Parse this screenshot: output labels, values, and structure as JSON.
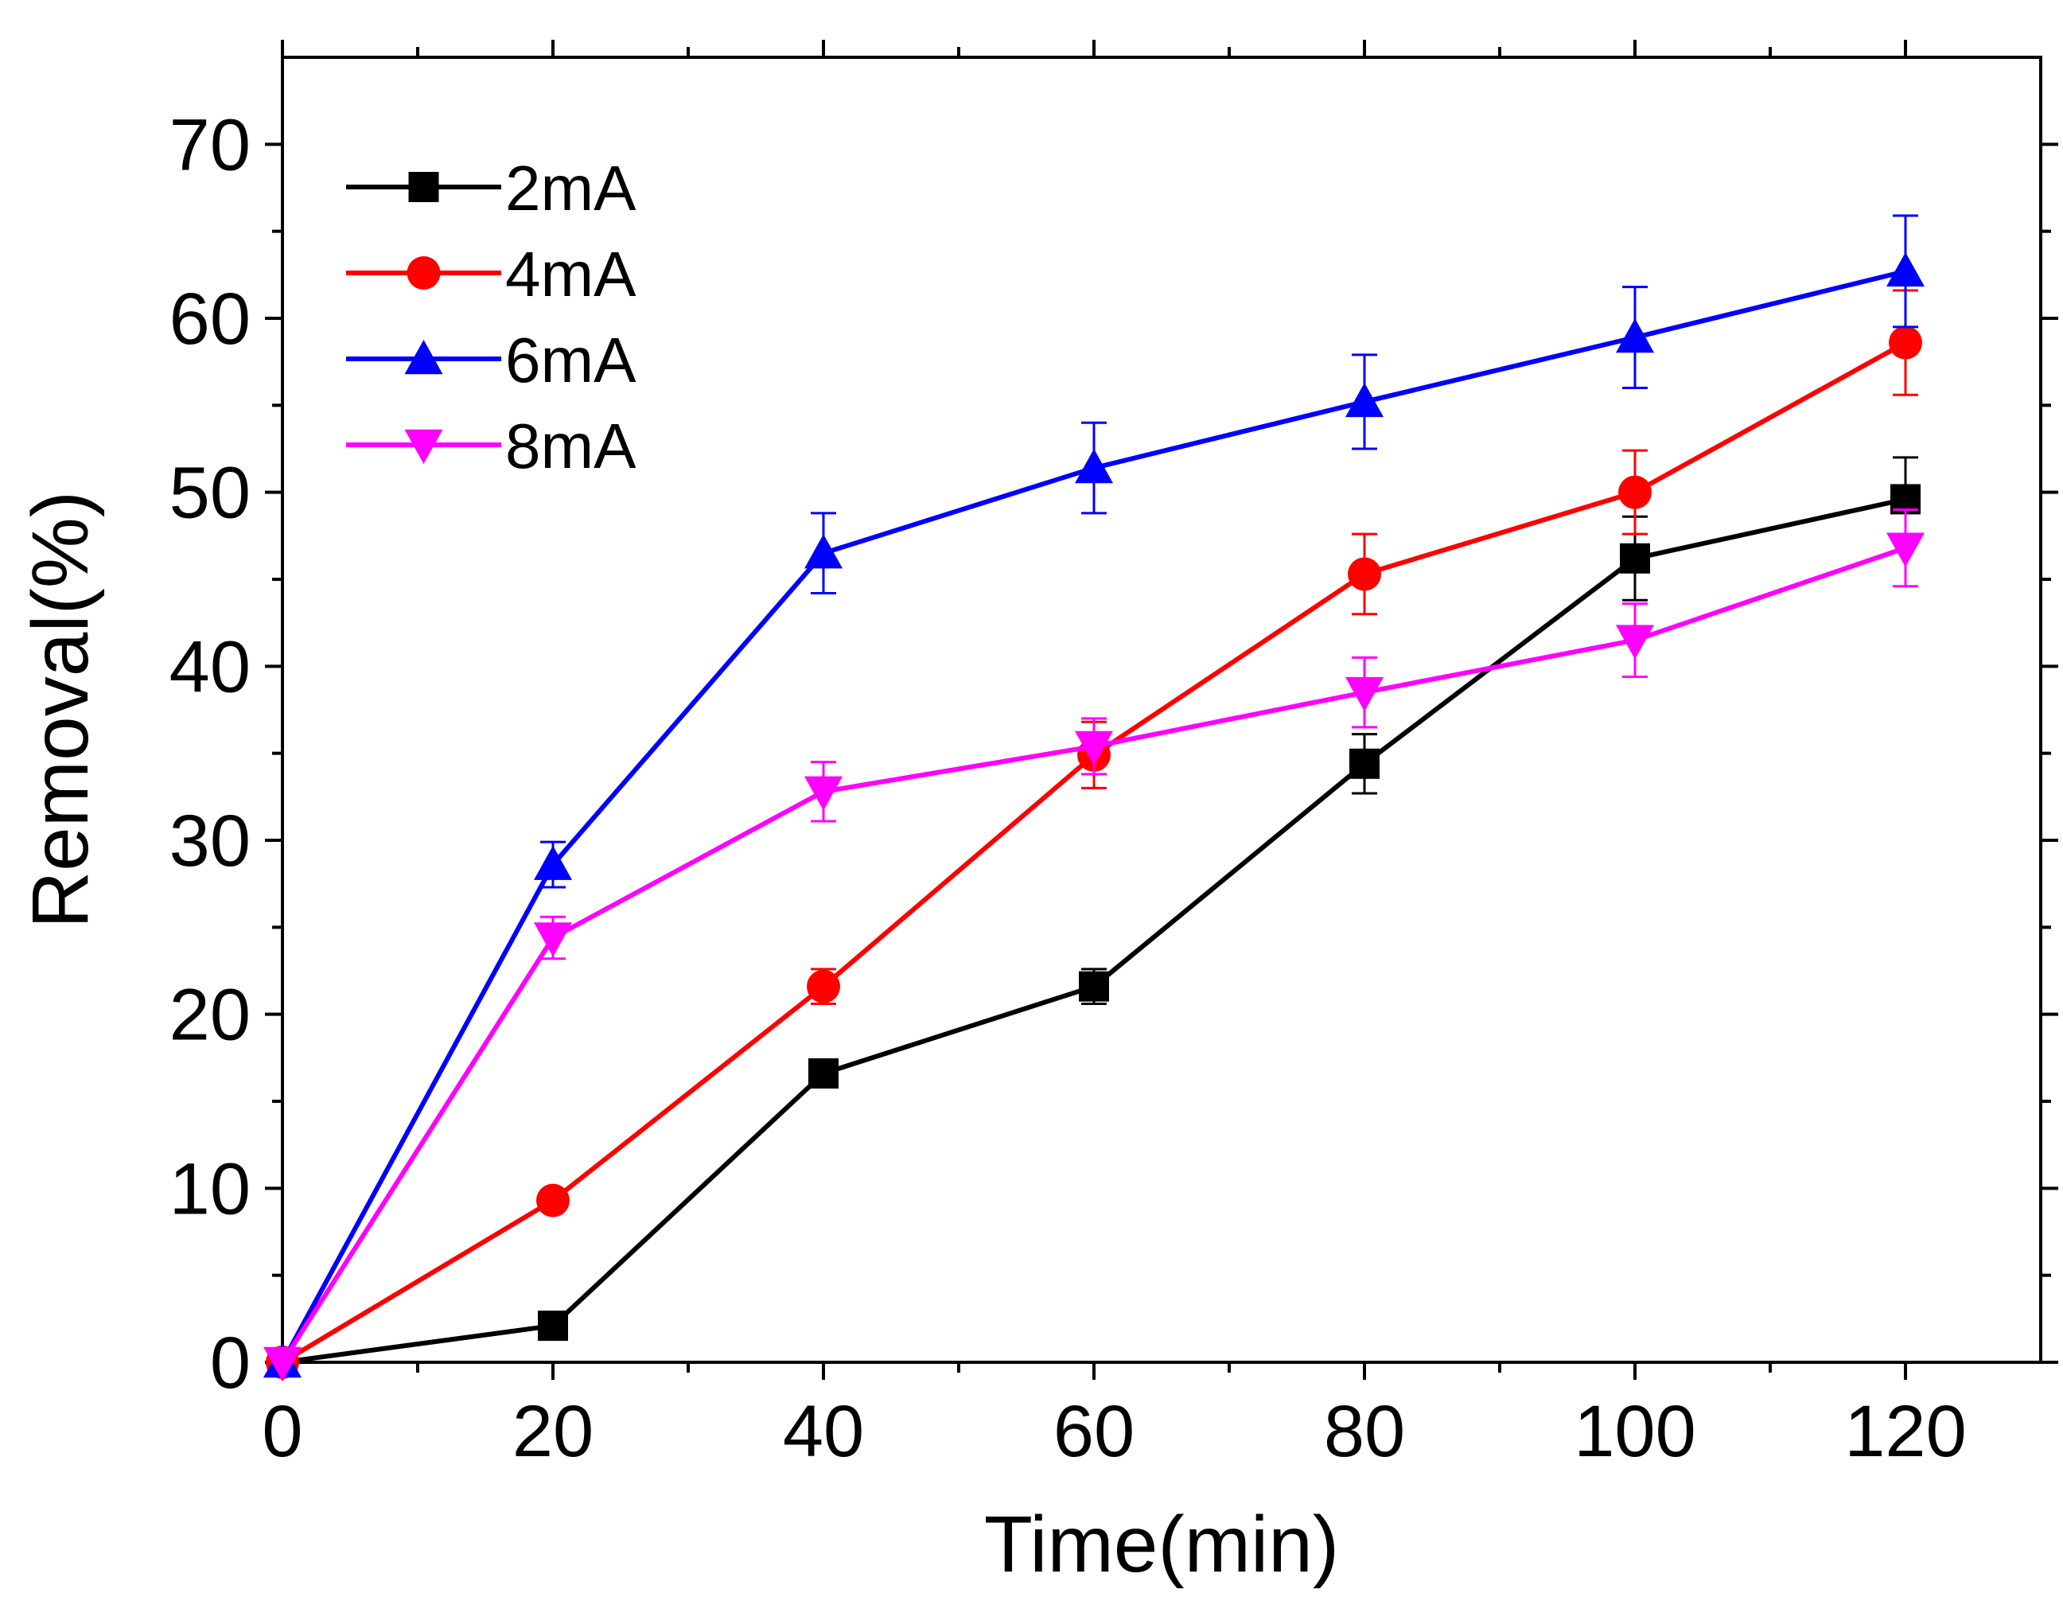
{
  "chart_data": {
    "type": "line",
    "title": "",
    "xlabel": "Time(min)",
    "ylabel": "Removal(%)",
    "xlim": [
      0,
      130
    ],
    "ylim": [
      0,
      75
    ],
    "x_ticks": [
      0,
      20,
      40,
      60,
      80,
      100,
      120
    ],
    "y_ticks": [
      0,
      10,
      20,
      30,
      40,
      50,
      60,
      70
    ],
    "x_minor_step": 10,
    "y_minor_step": 5,
    "legend_position": "top-left",
    "x": [
      0,
      20,
      40,
      60,
      80,
      100,
      120
    ],
    "series": [
      {
        "name": "2mA",
        "color": "#000000",
        "marker": "square",
        "values": [
          0,
          2.1,
          16.6,
          21.6,
          34.4,
          46.2,
          49.6
        ],
        "errors": [
          0,
          0,
          0,
          1.0,
          1.7,
          2.4,
          2.4
        ]
      },
      {
        "name": "4mA",
        "color": "#ff0000",
        "marker": "circle",
        "values": [
          0,
          9.3,
          21.6,
          34.9,
          45.3,
          50.0,
          58.6
        ],
        "errors": [
          0,
          0,
          1.0,
          1.9,
          2.3,
          2.4,
          3.0
        ]
      },
      {
        "name": "6mA",
        "color": "#0000ff",
        "marker": "triangle-up",
        "values": [
          0,
          28.6,
          46.5,
          51.4,
          55.2,
          58.9,
          62.7
        ],
        "errors": [
          0,
          1.3,
          2.3,
          2.6,
          2.7,
          2.9,
          3.2
        ]
      },
      {
        "name": "8mA",
        "color": "#ff00ff",
        "marker": "triangle-down",
        "values": [
          0,
          24.4,
          32.8,
          35.4,
          38.5,
          41.5,
          46.8
        ],
        "errors": [
          0,
          1.2,
          1.7,
          1.6,
          2.0,
          2.1,
          2.2
        ]
      }
    ]
  }
}
